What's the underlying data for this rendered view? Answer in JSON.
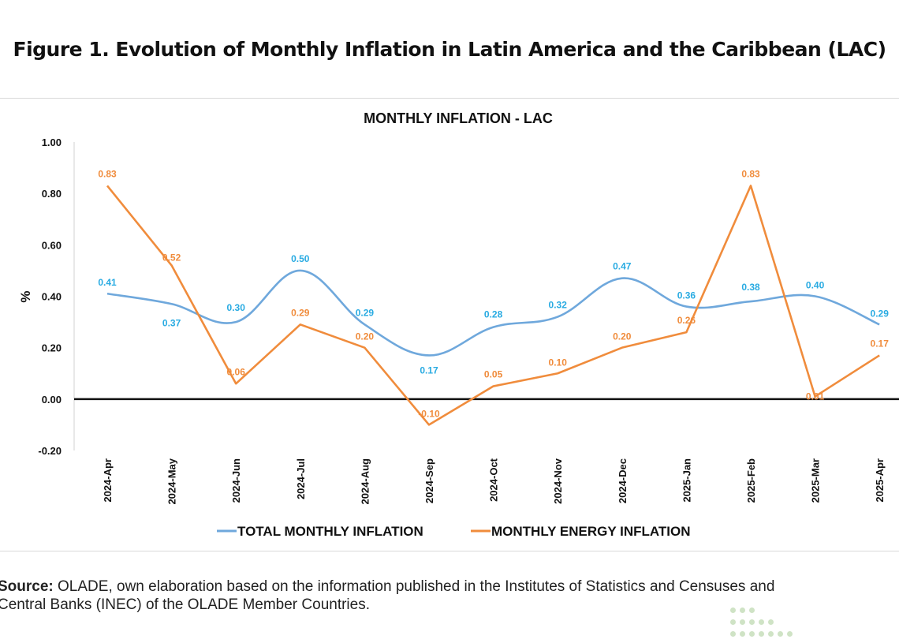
{
  "figure_title": "Figure 1. Evolution of Monthly Inflation in Latin America and the Caribbean (LAC)",
  "source": {
    "label": "Source:",
    "line1": " OLADE, own elaboration based on the information published in the Institutes of Statistics and Censuses and",
    "line2": "Central Banks (INEC) of the OLADE Member Countries."
  },
  "chart_data": {
    "type": "line",
    "title": "MONTHLY INFLATION  - LAC",
    "xlabel": "",
    "ylabel": "%",
    "ylim": [
      -0.2,
      1.0
    ],
    "yticks": [
      1.0,
      0.8,
      0.6,
      0.4,
      0.2,
      0.0,
      -0.2
    ],
    "ytick_labels": [
      "1.00",
      "0.80",
      "0.60",
      "0.40",
      "0.20",
      "0.00",
      "-0.20"
    ],
    "categories": [
      "2024-Apr",
      "2024-May",
      "2024-Jun",
      "2024-Jul",
      "2024-Aug",
      "2024-Sep",
      "2024-Oct",
      "2024-Nov",
      "2024-Dec",
      "2025-Jan",
      "2025-Feb",
      "2025-Mar",
      "2025-Apr"
    ],
    "series": [
      {
        "name": "TOTAL MONTHLY INFLATION",
        "color": "#6fa8dc",
        "label_color": "#29abe2",
        "smooth": true,
        "values": [
          0.41,
          0.37,
          0.3,
          0.5,
          0.29,
          0.17,
          0.28,
          0.32,
          0.47,
          0.36,
          0.38,
          0.4,
          0.29
        ],
        "labels": [
          "0.41",
          "0.37",
          "0.30",
          "0.50",
          "0.29",
          "0.17",
          "0.28",
          "0.32",
          "0.47",
          "0.36",
          "0.38",
          "0.40",
          "0.29"
        ]
      },
      {
        "name": "MONTHLY ENERGY INFLATION",
        "color": "#f08c3c",
        "label_color": "#f08c3c",
        "smooth": false,
        "values": [
          0.83,
          0.52,
          0.06,
          0.29,
          0.2,
          -0.1,
          0.05,
          0.1,
          0.2,
          0.26,
          0.83,
          0.01,
          0.17
        ],
        "labels": [
          "0.83",
          "0.52",
          "0.06",
          "0.29",
          "0.20",
          "-0.10",
          "0.05",
          "0.10",
          "0.20",
          "0.26",
          "0.83",
          "0.01",
          "0.17"
        ]
      }
    ],
    "zero_line": true,
    "grid": false,
    "legend": "bottom"
  }
}
